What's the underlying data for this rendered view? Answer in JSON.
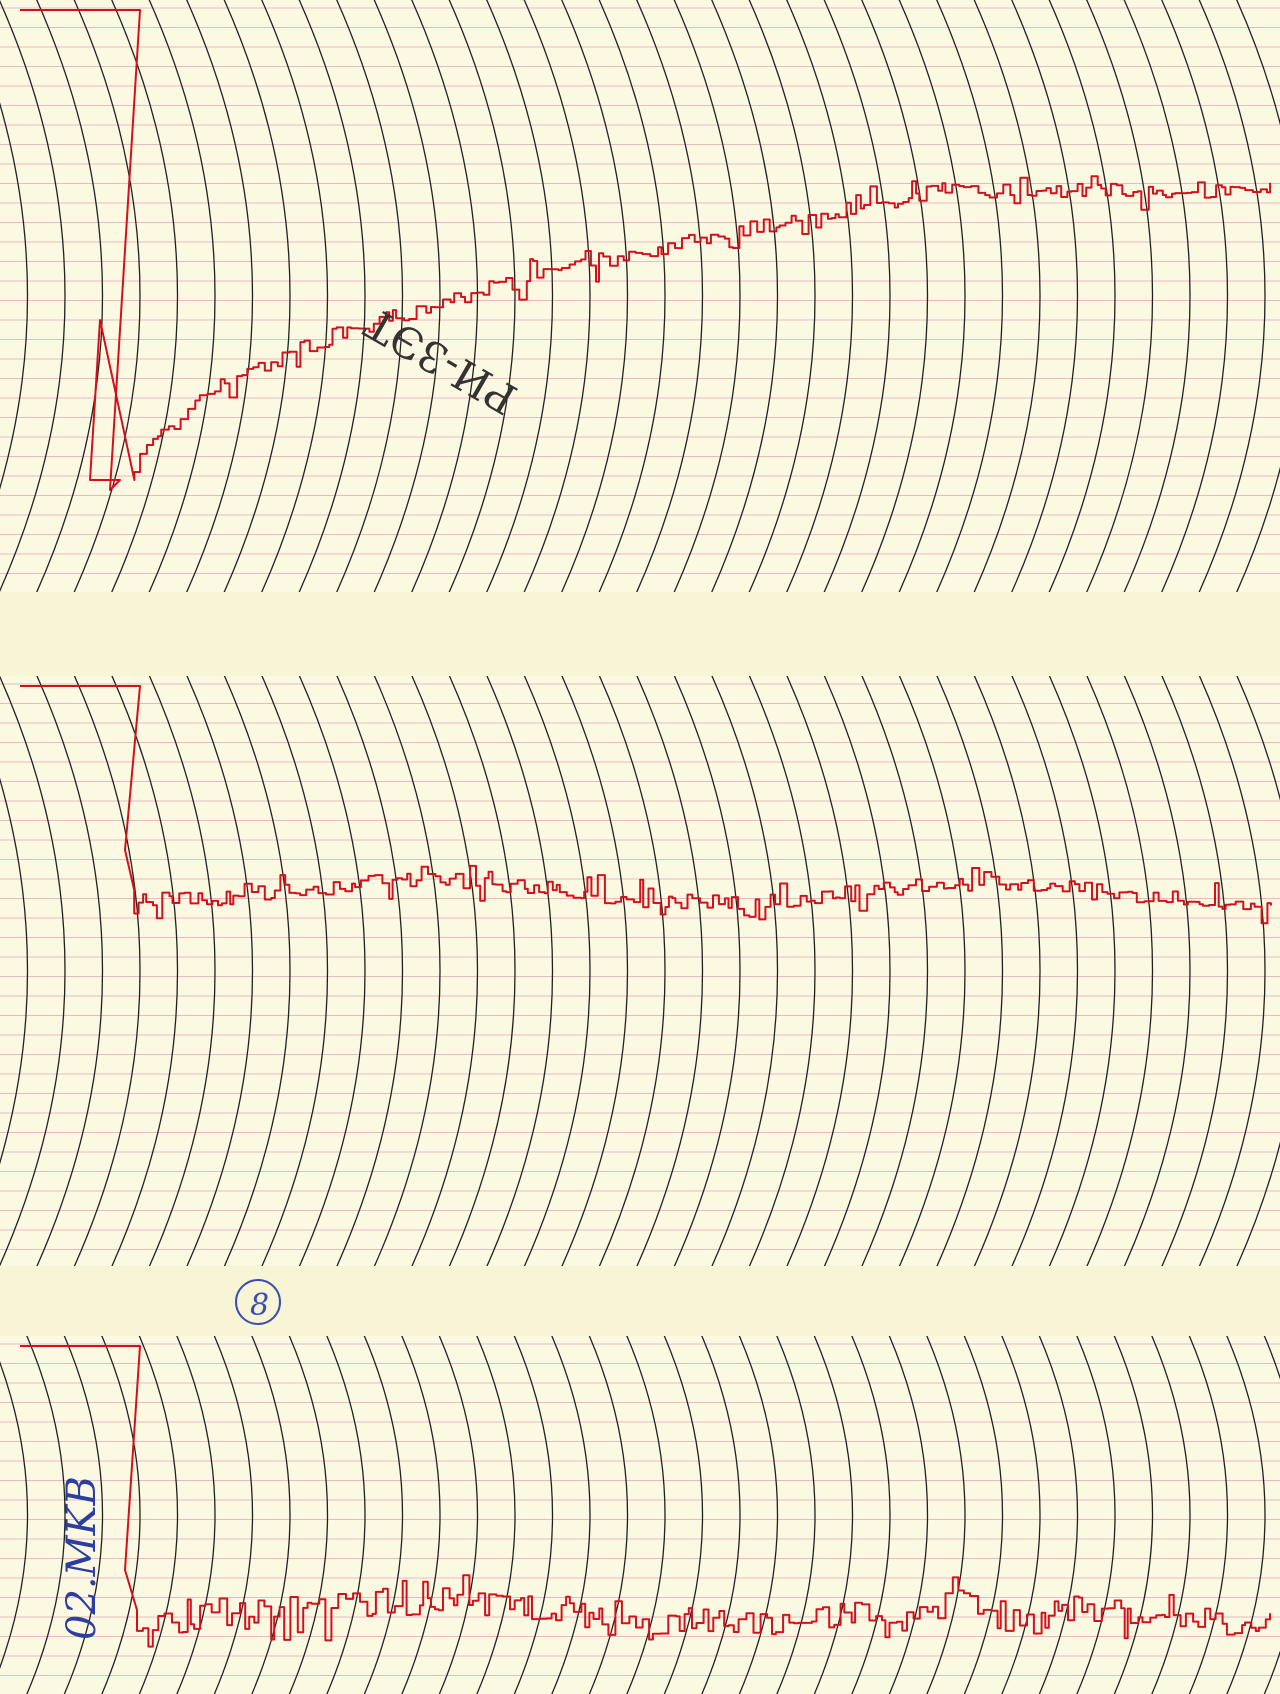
{
  "annotations": {
    "top_note": "РИ-3ЭТ",
    "circled": "8",
    "side_note": "02.MKB"
  }
}
